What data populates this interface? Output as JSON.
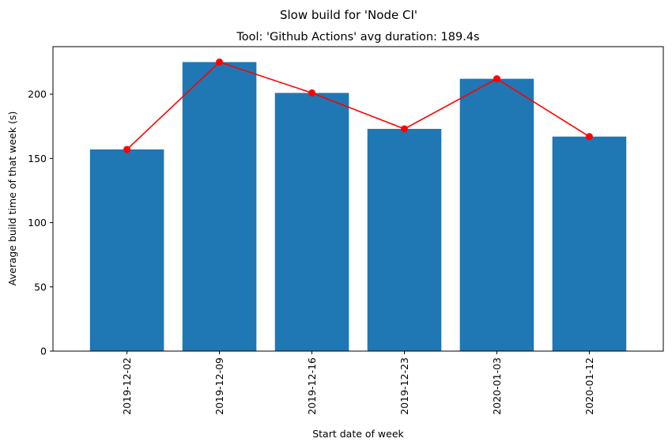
{
  "chart_data": {
    "type": "bar",
    "suptitle": "Slow build for 'Node CI'",
    "title": "Tool: 'Github Actions' avg duration: 189.4s",
    "xlabel": "Start date of week",
    "ylabel": "Average build time of that week (s)",
    "categories": [
      "2019-12-02",
      "2019-12-09",
      "2019-12-16",
      "2019-12-23",
      "2020-01-03",
      "2020-01-12"
    ],
    "series": [
      {
        "type": "bar",
        "values": [
          157,
          225,
          201,
          173,
          212,
          167
        ],
        "color": "#1f77b4"
      },
      {
        "type": "line",
        "marker": "circle",
        "values": [
          157,
          225,
          201,
          173,
          212,
          167
        ],
        "color": "#ff0000"
      }
    ],
    "yticks": [
      0,
      50,
      100,
      150,
      200
    ],
    "ylim": [
      0,
      237
    ],
    "grid": false,
    "legend": "none"
  }
}
